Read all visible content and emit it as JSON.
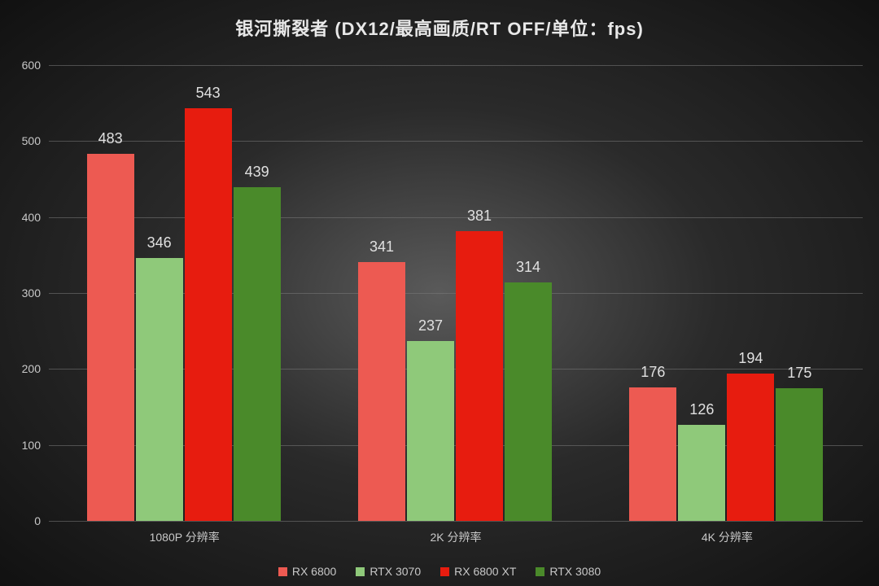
{
  "chart": {
    "type": "bar",
    "title": "银河撕裂者 (DX12/最高画质/RT OFF/单位：fps)",
    "title_fontsize": 22,
    "title_color": "#e8e8e8",
    "background": "radial-gradient(#5a5a5a,#111111)",
    "grid_color": "#7a7a7a",
    "axis_font_color": "#c8c8c8",
    "axis_fontsize": 14,
    "value_label_fontsize": 18,
    "value_label_color": "#e0e0e0",
    "yaxis": {
      "min": 0,
      "max": 600,
      "step": 100
    },
    "categories": [
      "1080P 分辨率",
      "2K 分辨率",
      "4K 分辨率"
    ],
    "category_fontsize": 14,
    "series": [
      {
        "name": "RX 6800",
        "color": "#ed5a52"
      },
      {
        "name": "RTX 3070",
        "color": "#8fc97a"
      },
      {
        "name": "RX 6800 XT",
        "color": "#e71c0f"
      },
      {
        "name": "RTX 3080",
        "color": "#4a8a2a"
      }
    ],
    "values": [
      [
        483,
        346,
        543,
        439
      ],
      [
        341,
        237,
        381,
        314
      ],
      [
        176,
        126,
        194,
        175
      ]
    ],
    "legend_fontsize": 14,
    "bar_width_ratio": 0.72
  }
}
